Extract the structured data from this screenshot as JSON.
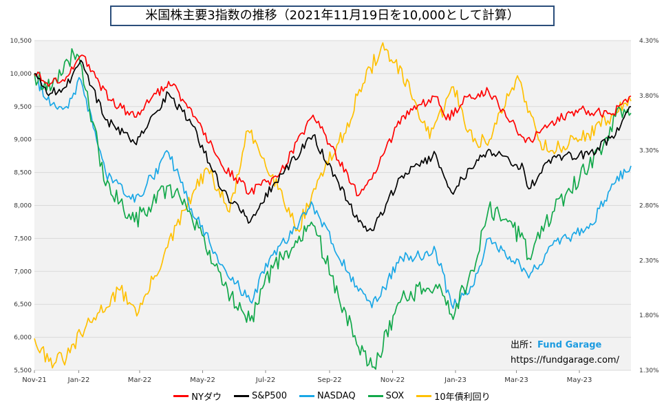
{
  "title": "米国株主要3指数の推移（2021年11月19日を10,000として計算）",
  "source": {
    "label": "出所：",
    "name": "Fund Garage",
    "url": "https://fundgarage.com/"
  },
  "colors": {
    "NYダウ": "#ff0000",
    "S&P500": "#000000",
    "NASDAQ": "#19a7e6",
    "SOX": "#12a84a",
    "10年債利回り": "#ffc000",
    "plot_bg": "#f2f2f2",
    "grid": "#d9d9d9"
  },
  "chart_data": {
    "type": "line",
    "title": "米国株主要3指数の推移（2021年11月19日を10,000として計算）",
    "x_ticks": [
      "Nov-21",
      "Jan-22",
      "Mar-22",
      "May-22",
      "Jul-22",
      "Sep-22",
      "Nov-22",
      "Jan-23",
      "Mar-23",
      "May-23"
    ],
    "x_range": [
      "2021-11-19",
      "2023-06-20"
    ],
    "y_left": {
      "range": [
        5500,
        10500
      ],
      "ticks": [
        "5,500",
        "6,000",
        "6,500",
        "7,000",
        "7,500",
        "8,000",
        "8,500",
        "9,000",
        "9,500",
        "10,000",
        "10,500"
      ]
    },
    "y_right": {
      "range": [
        1.3,
        4.3
      ],
      "unit": "%",
      "ticks": [
        "1.30%",
        "1.80%",
        "2.30%",
        "2.80%",
        "3.30%",
        "3.80%",
        "4.30%"
      ]
    },
    "grid": "horizontal",
    "legend_position": "bottom",
    "series": [
      {
        "name": "NYダウ",
        "axis": "left",
        "x": [
          "2021-11-19",
          "2021-12-01",
          "2021-12-20",
          "2022-01-04",
          "2022-01-31",
          "2022-02-24",
          "2022-03-29",
          "2022-04-20",
          "2022-05-19",
          "2022-06-16",
          "2022-07-14",
          "2022-08-16",
          "2022-09-29",
          "2022-10-12",
          "2022-11-10",
          "2022-12-13",
          "2022-12-23",
          "2023-01-13",
          "2023-02-02",
          "2023-03-08",
          "2023-03-15",
          "2023-04-03",
          "2023-05-01",
          "2023-06-01",
          "2023-06-20"
        ],
        "values": [
          10000,
          9860,
          9950,
          10280,
          9600,
          9340,
          9880,
          9460,
          8620,
          8200,
          8460,
          9370,
          8150,
          8400,
          9350,
          9650,
          9300,
          9650,
          9730,
          9030,
          8980,
          9250,
          9460,
          9380,
          9660
        ]
      },
      {
        "name": "S&P500",
        "axis": "left",
        "x": [
          "2021-11-19",
          "2021-12-01",
          "2021-12-20",
          "2022-01-03",
          "2022-01-27",
          "2022-02-24",
          "2022-03-29",
          "2022-04-20",
          "2022-05-20",
          "2022-06-16",
          "2022-07-08",
          "2022-08-16",
          "2022-09-29",
          "2022-10-12",
          "2022-11-10",
          "2022-12-13",
          "2022-12-28",
          "2023-01-20",
          "2023-02-02",
          "2023-03-08",
          "2023-03-13",
          "2023-04-05",
          "2023-05-10",
          "2023-06-05",
          "2023-06-20"
        ],
        "values": [
          10000,
          9700,
          9800,
          10200,
          9300,
          8950,
          9700,
          9240,
          8220,
          7750,
          8300,
          9060,
          7750,
          7620,
          8450,
          8770,
          8200,
          8620,
          8850,
          8560,
          8250,
          8730,
          8770,
          9070,
          9500
        ]
      },
      {
        "name": "NASDAQ",
        "axis": "left",
        "x": [
          "2021-11-19",
          "2021-12-01",
          "2021-12-20",
          "2022-01-03",
          "2022-01-27",
          "2022-02-24",
          "2022-03-29",
          "2022-04-20",
          "2022-05-20",
          "2022-06-16",
          "2022-07-08",
          "2022-08-16",
          "2022-09-29",
          "2022-10-12",
          "2022-11-10",
          "2022-12-13",
          "2022-12-28",
          "2023-01-19",
          "2023-02-02",
          "2023-03-08",
          "2023-03-13",
          "2023-04-05",
          "2023-05-10",
          "2023-06-05",
          "2023-06-20"
        ],
        "values": [
          10000,
          9600,
          9500,
          9900,
          8500,
          8050,
          8800,
          7950,
          7100,
          6550,
          7250,
          8000,
          6700,
          6450,
          7200,
          7300,
          6500,
          6800,
          7500,
          7050,
          6900,
          7400,
          7650,
          8350,
          8600
        ]
      },
      {
        "name": "SOX",
        "axis": "left",
        "x": [
          "2021-11-19",
          "2021-12-01",
          "2021-12-27",
          "2022-01-04",
          "2022-01-27",
          "2022-02-24",
          "2022-03-29",
          "2022-04-20",
          "2022-05-20",
          "2022-06-16",
          "2022-07-08",
          "2022-08-16",
          "2022-09-29",
          "2022-10-14",
          "2022-11-10",
          "2022-12-13",
          "2022-12-28",
          "2023-01-19",
          "2023-02-02",
          "2023-03-08",
          "2023-03-13",
          "2023-04-05",
          "2023-05-24",
          "2023-06-05",
          "2023-06-20"
        ],
        "values": [
          10000,
          9750,
          10300,
          10100,
          8300,
          7750,
          8300,
          7850,
          6800,
          6250,
          7050,
          7700,
          5850,
          5550,
          6600,
          6800,
          6350,
          7000,
          7950,
          7500,
          7200,
          7900,
          8900,
          9350,
          9400
        ]
      },
      {
        "name": "10年債利回り",
        "axis": "right",
        "x": [
          "2021-11-19",
          "2021-11-26",
          "2021-12-03",
          "2021-12-20",
          "2022-01-03",
          "2022-01-21",
          "2022-02-10",
          "2022-02-28",
          "2022-03-28",
          "2022-04-21",
          "2022-05-06",
          "2022-05-27",
          "2022-06-14",
          "2022-07-08",
          "2022-08-01",
          "2022-08-22",
          "2022-09-15",
          "2022-09-28",
          "2022-10-21",
          "2022-11-03",
          "2022-11-22",
          "2022-12-07",
          "2022-12-30",
          "2023-01-18",
          "2023-02-03",
          "2023-03-02",
          "2023-03-24",
          "2023-04-05",
          "2023-05-10",
          "2023-06-01",
          "2023-06-20"
        ],
        "values": [
          1.59,
          1.5,
          1.38,
          1.41,
          1.63,
          1.83,
          2.03,
          1.83,
          2.42,
          2.9,
          3.13,
          2.74,
          3.48,
          3.08,
          2.58,
          3.05,
          3.45,
          3.8,
          4.24,
          4.1,
          3.76,
          3.41,
          3.88,
          3.38,
          3.4,
          3.98,
          3.38,
          3.3,
          3.45,
          3.62,
          3.75
        ]
      }
    ]
  }
}
